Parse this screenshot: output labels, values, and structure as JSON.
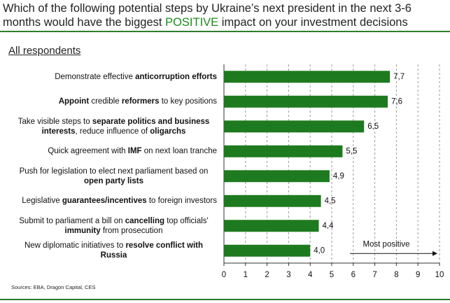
{
  "chart_data": {
    "type": "bar",
    "orientation": "horizontal",
    "title": [
      {
        "text": "Which of the following potential steps by Ukraine’s next president in the next 3-6 months would have the biggest "
      },
      {
        "text": "POSITIVE",
        "color": "#1a8a1a"
      },
      {
        "text": " impact on your investment decisions"
      }
    ],
    "subtitle": "All respondents",
    "source": "Sources: EBA, Dragon Capital, CES",
    "annotation": "Most positive",
    "categories": [
      [
        {
          "text": "Demonstrate effective "
        },
        {
          "text": "anticorruption efforts",
          "bold": true
        }
      ],
      [
        {
          "text": "Appoint",
          "bold": true
        },
        {
          "text": " credible "
        },
        {
          "text": "reformers",
          "bold": true
        },
        {
          "text": " to key positions"
        }
      ],
      [
        {
          "text": "Take visible steps to "
        },
        {
          "text": "separate politics and business interests",
          "bold": true
        },
        {
          "text": ", reduce influence of "
        },
        {
          "text": "oligarchs",
          "bold": true
        }
      ],
      [
        {
          "text": "Quick agreement with "
        },
        {
          "text": "IMF",
          "bold": true
        },
        {
          "text": " on next loan tranche"
        }
      ],
      [
        {
          "text": "Push for legislation to elect next parliament based on "
        },
        {
          "text": "open party lists",
          "bold": true
        }
      ],
      [
        {
          "text": "Legislative "
        },
        {
          "text": "guarantees/incentives",
          "bold": true
        },
        {
          "text": " to foreign investors"
        }
      ],
      [
        {
          "text": "Submit to parliament a bill on "
        },
        {
          "text": "cancelling",
          "bold": true
        },
        {
          "text": " top officials' "
        },
        {
          "text": "immunity",
          "bold": true
        },
        {
          "text": " from prosecution"
        }
      ],
      [
        {
          "text": "New diplomatic initiatives to "
        },
        {
          "text": "resolve conflict with Russia",
          "bold": true
        }
      ]
    ],
    "values": [
      7.7,
      7.6,
      6.5,
      5.5,
      4.9,
      4.5,
      4.4,
      4.0
    ],
    "value_labels": [
      "7,7",
      "7,6",
      "6,5",
      "5,5",
      "4,9",
      "4,5",
      "4,4",
      "4,0"
    ],
    "color": "#1e7a1e",
    "xlim": [
      0,
      10
    ],
    "xticks": [
      0,
      1,
      2,
      3,
      4,
      5,
      6,
      7,
      8,
      9,
      10
    ],
    "grid": true
  }
}
